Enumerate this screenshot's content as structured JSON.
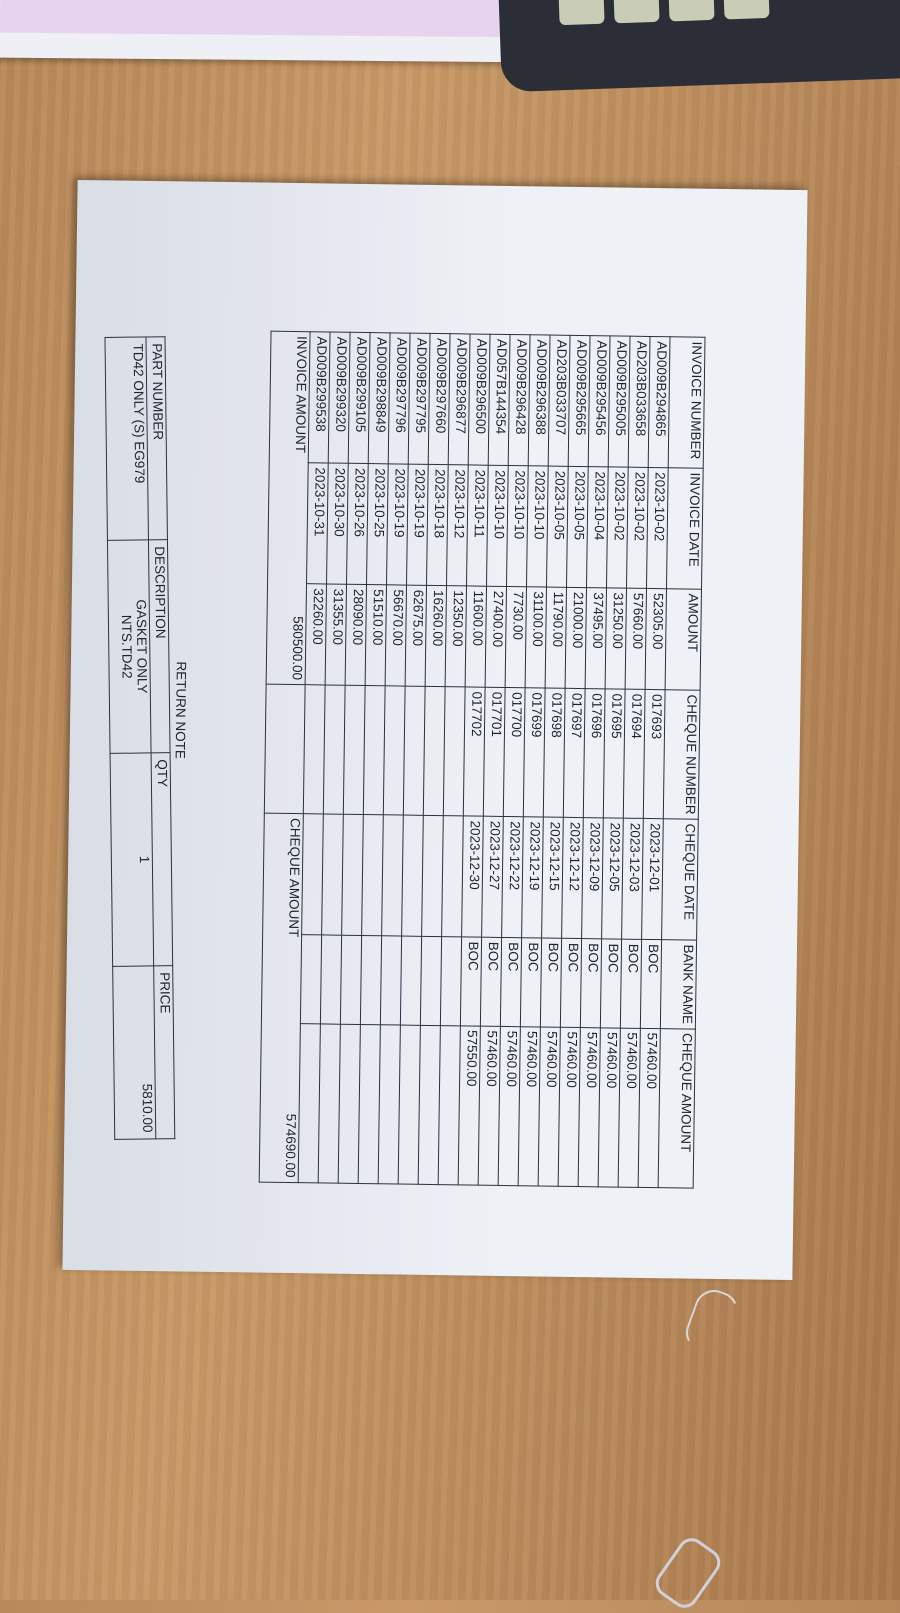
{
  "headers": {
    "invoice_number": "INVOICE NUMBER",
    "invoice_date": "INVOICE DATE",
    "amount": "AMOUNT",
    "cheque_number": "CHEQUE NUMBER",
    "cheque_date": "CHEQUE DATE",
    "bank_name": "BANK NAME",
    "cheque_amount": "CHEQUE AMOUNT"
  },
  "rows": [
    {
      "invoice_number": "AD009B294865",
      "invoice_date": "2023-10-02",
      "amount": "52305.00",
      "cheque_number": "017693",
      "cheque_date": "2023-12-01",
      "bank_name": "BOC",
      "cheque_amount": "57460.00"
    },
    {
      "invoice_number": "AD203B033658",
      "invoice_date": "2023-10-02",
      "amount": "57660.00",
      "cheque_number": "017694",
      "cheque_date": "2023-12-03",
      "bank_name": "BOC",
      "cheque_amount": "57460.00"
    },
    {
      "invoice_number": "AD009B295005",
      "invoice_date": "2023-10-02",
      "amount": "31250.00",
      "cheque_number": "017695",
      "cheque_date": "2023-12-05",
      "bank_name": "BOC",
      "cheque_amount": "57460.00"
    },
    {
      "invoice_number": "AD009B295456",
      "invoice_date": "2023-10-04",
      "amount": "37495.00",
      "cheque_number": "017696",
      "cheque_date": "2023-12-09",
      "bank_name": "BOC",
      "cheque_amount": "57460.00"
    },
    {
      "invoice_number": "AD009B295665",
      "invoice_date": "2023-10-05",
      "amount": "21000.00",
      "cheque_number": "017697",
      "cheque_date": "2023-12-12",
      "bank_name": "BOC",
      "cheque_amount": "57460.00"
    },
    {
      "invoice_number": "AD203B033707",
      "invoice_date": "2023-10-05",
      "amount": "11790.00",
      "cheque_number": "017698",
      "cheque_date": "2023-12-15",
      "bank_name": "BOC",
      "cheque_amount": "57460.00"
    },
    {
      "invoice_number": "AD009B296388",
      "invoice_date": "2023-10-10",
      "amount": "31100.00",
      "cheque_number": "017699",
      "cheque_date": "2023-12-19",
      "bank_name": "BOC",
      "cheque_amount": "57460.00"
    },
    {
      "invoice_number": "AD009B296428",
      "invoice_date": "2023-10-10",
      "amount": "7730.00",
      "cheque_number": "017700",
      "cheque_date": "2023-12-22",
      "bank_name": "BOC",
      "cheque_amount": "57460.00"
    },
    {
      "invoice_number": "AD057B144354",
      "invoice_date": "2023-10-10",
      "amount": "27400.00",
      "cheque_number": "017701",
      "cheque_date": "2023-12-27",
      "bank_name": "BOC",
      "cheque_amount": "57460.00"
    },
    {
      "invoice_number": "AD009B296500",
      "invoice_date": "2023-10-11",
      "amount": "11600.00",
      "cheque_number": "017702",
      "cheque_date": "2023-12-30",
      "bank_name": "BOC",
      "cheque_amount": "57550.00"
    },
    {
      "invoice_number": "AD009B296877",
      "invoice_date": "2023-10-12",
      "amount": "12350.00"
    },
    {
      "invoice_number": "AD009B297660",
      "invoice_date": "2023-10-18",
      "amount": "16260.00"
    },
    {
      "invoice_number": "AD009B297795",
      "invoice_date": "2023-10-19",
      "amount": "62675.00"
    },
    {
      "invoice_number": "AD009B297796",
      "invoice_date": "2023-10-19",
      "amount": "56670.00"
    },
    {
      "invoice_number": "AD009B298849",
      "invoice_date": "2023-10-25",
      "amount": "51510.00"
    },
    {
      "invoice_number": "AD009B299105",
      "invoice_date": "2023-10-26",
      "amount": "28090.00"
    },
    {
      "invoice_number": "AD009B299320",
      "invoice_date": "2023-10-30",
      "amount": "31355.00"
    },
    {
      "invoice_number": "AD009B299538",
      "invoice_date": "2023-10-31",
      "amount": "32260.00"
    }
  ],
  "totals": {
    "invoice_amount_label": "INVOICE AMOUNT",
    "invoice_amount": "580500.00",
    "cheque_amount_label": "CHEQUE AMOUNT",
    "cheque_amount": "574690.00"
  },
  "return_note": {
    "title": "RETURN NOTE",
    "headers": {
      "part_number": "PART NUMBER",
      "description": "DESCRIPTION",
      "qty": "QTY",
      "price": "PRICE"
    },
    "item": {
      "part_number": "TD42 ONLY (S) EG979",
      "description_line1": "GASKET ONLY",
      "description_line2": "NTS.TD42",
      "qty": "1",
      "price": "5810.00"
    }
  }
}
